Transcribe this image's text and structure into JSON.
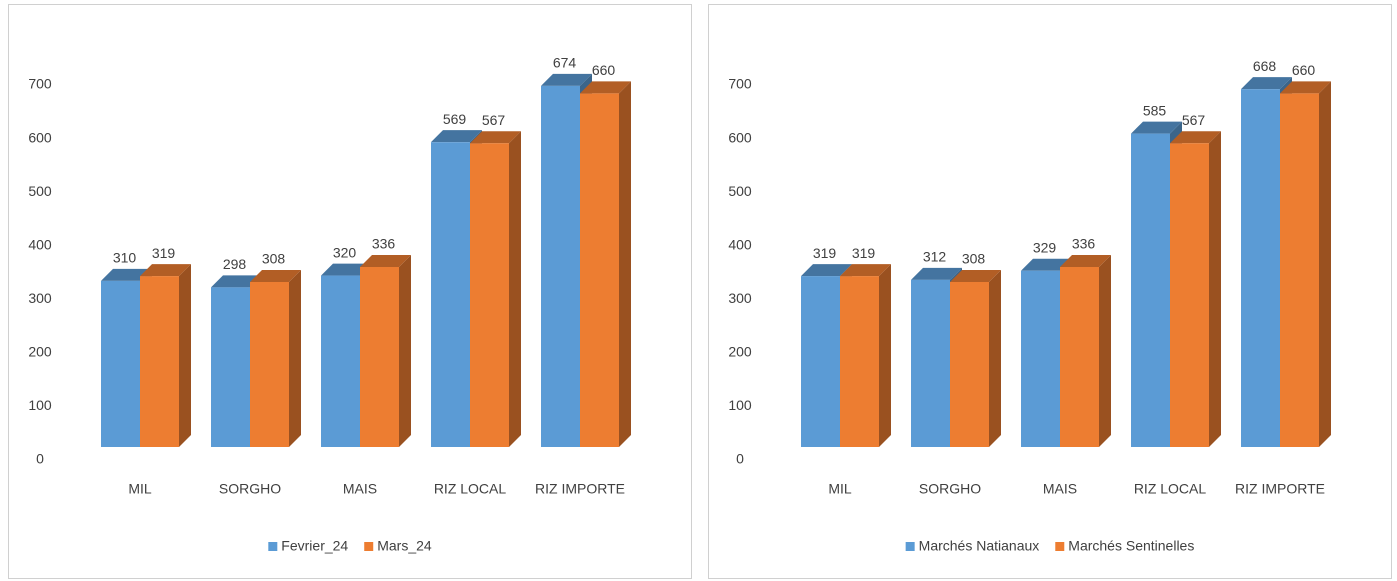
{
  "chart_data": [
    {
      "type": "bar3d",
      "categories": [
        "MIL",
        "SORGHO",
        "MAIS",
        "RIZ LOCAL",
        "RIZ IMPORTE"
      ],
      "series": [
        {
          "name": "Fevrier_24",
          "color": "#5b9bd5",
          "values": [
            310,
            298,
            320,
            569,
            674
          ]
        },
        {
          "name": "Mars_24",
          "color": "#ed7d31",
          "values": [
            319,
            308,
            336,
            567,
            660
          ]
        }
      ],
      "ylim": [
        0,
        700
      ],
      "yticks": [
        0,
        100,
        200,
        300,
        400,
        500,
        600,
        700
      ],
      "legend": "bottom"
    },
    {
      "type": "bar3d",
      "categories": [
        "MIL",
        "SORGHO",
        "MAIS",
        "RIZ LOCAL",
        "RIZ IMPORTE"
      ],
      "series": [
        {
          "name": "Marchés Natianaux",
          "color": "#5b9bd5",
          "values": [
            319,
            312,
            329,
            585,
            668
          ]
        },
        {
          "name": "Marchés Sentinelles",
          "color": "#ed7d31",
          "values": [
            319,
            308,
            336,
            567,
            660
          ]
        }
      ],
      "ylim": [
        0,
        700
      ],
      "yticks": [
        0,
        100,
        200,
        300,
        400,
        500,
        600,
        700
      ],
      "legend": "bottom"
    }
  ]
}
